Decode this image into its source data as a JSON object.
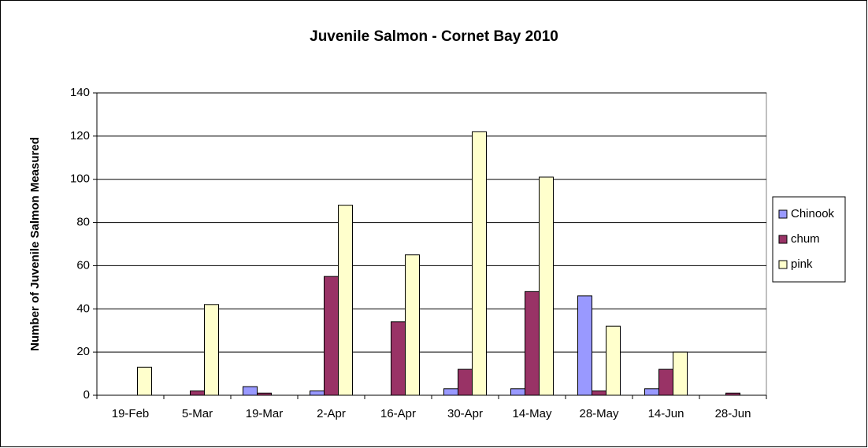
{
  "chart_data": {
    "type": "bar",
    "title": "Juvenile Salmon - Cornet Bay 2010",
    "y_label": "Number of Juvenile Salmon Measured",
    "categories": [
      "19-Feb",
      "5-Mar",
      "19-Mar",
      "2-Apr",
      "16-Apr",
      "30-Apr",
      "14-May",
      "28-May",
      "14-Jun",
      "28-Jun"
    ],
    "series": [
      {
        "name": "Chinook",
        "color": "#9999ff",
        "values": [
          0,
          0,
          4,
          2,
          0,
          3,
          3,
          46,
          3,
          0
        ]
      },
      {
        "name": "chum",
        "color": "#993366",
        "values": [
          0,
          2,
          1,
          55,
          34,
          12,
          48,
          2,
          12,
          1
        ]
      },
      {
        "name": "pink",
        "color": "#ffffcc",
        "values": [
          13,
          42,
          0,
          88,
          65,
          122,
          101,
          32,
          20,
          0
        ]
      }
    ],
    "ylim": [
      0,
      140
    ],
    "yticks": [
      0,
      20,
      40,
      60,
      80,
      100,
      120,
      140
    ],
    "grid": true,
    "legend": "right"
  }
}
